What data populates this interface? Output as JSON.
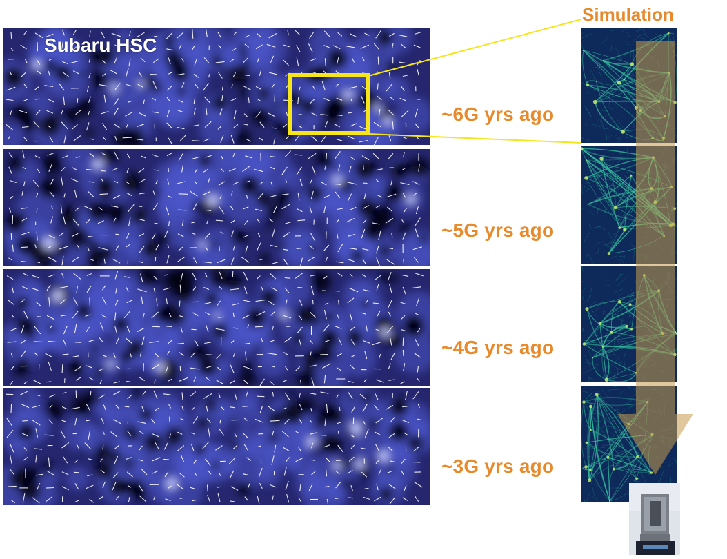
{
  "figure": {
    "panel_label": "Subaru HSC",
    "simulation_title": "Simulation",
    "epochs": [
      {
        "label": "~6G yrs ago"
      },
      {
        "label": "~5G yrs ago"
      },
      {
        "label": "~4G yrs ago"
      },
      {
        "label": "~3G yrs ago"
      }
    ]
  },
  "colors": {
    "map_background": "#25266e",
    "map_mid": "#4a55c8",
    "map_highlight": "#c8ceff",
    "void": "#050510",
    "sim_background": "#0d2a5a",
    "sim_filament": "#35c0a0",
    "accent_orange": "#e88a2b",
    "callout_yellow": "#f5e51a",
    "arrow_fill": "#c89a4a"
  },
  "icons": {
    "arrow": "downward-time-arrow",
    "telescope": "subaru-telescope-photo"
  }
}
